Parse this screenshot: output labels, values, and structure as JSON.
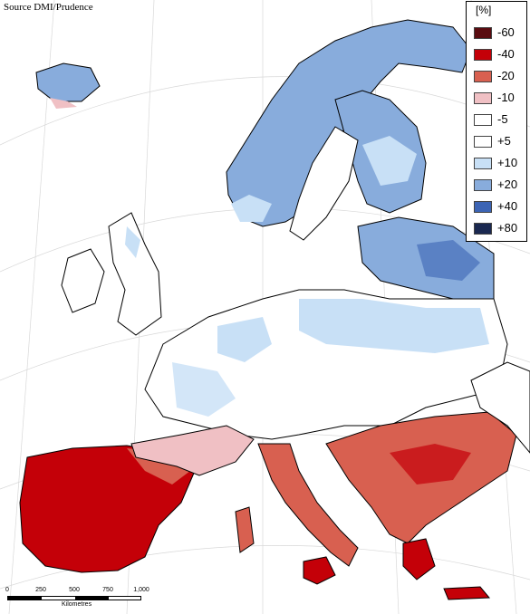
{
  "source_credit": "Source DMI/Prudence",
  "legend": {
    "title": "[%]",
    "classes": [
      {
        "label": "-60",
        "color": "#5a0c10"
      },
      {
        "label": "-40",
        "color": "#c40008"
      },
      {
        "label": "-20",
        "color": "#d86050"
      },
      {
        "label": "-10",
        "color": "#f0c0c4"
      },
      {
        "label": "-5",
        "color": "#ffffff"
      },
      {
        "label": "+5",
        "color": "#ffffff"
      },
      {
        "label": "+10",
        "color": "#c8e0f6"
      },
      {
        "label": "+20",
        "color": "#88acdc"
      },
      {
        "label": "+40",
        "color": "#3c64b4"
      },
      {
        "label": "+80",
        "color": "#1a2850"
      }
    ]
  },
  "scalebar": {
    "ticks": [
      "0",
      "250",
      "500",
      "750",
      "1,000"
    ],
    "units": "Kilometres"
  }
}
